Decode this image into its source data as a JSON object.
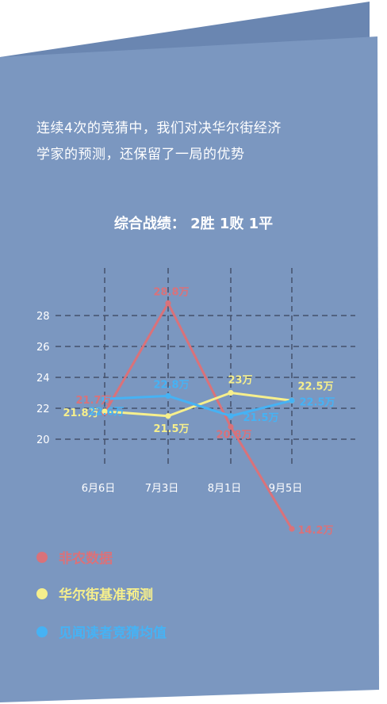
{
  "intro": {
    "line1": "连续4次的竞猜中，我们对决华尔街经济",
    "line2": "学家的预测，还保留了一局的优势"
  },
  "record": "综合战绩： 2胜 1败 1平",
  "colors": {
    "card": "#7b97c0",
    "card_back": "#6a86b1",
    "grid": "#45516a",
    "axis_text": "#ffffff",
    "nonfarm": "#d9727a",
    "wallstreet": "#f6ef8c",
    "readers": "#46b2f4"
  },
  "chart_data": {
    "type": "line",
    "categories": [
      "6月6日",
      "7月3日",
      "8月1日",
      "9月5日"
    ],
    "yticks": [
      20,
      22,
      24,
      26,
      28
    ],
    "ylim": [
      18.5,
      30
    ],
    "grid": true,
    "legend_position": "bottom-left",
    "series": [
      {
        "name": "非农数据",
        "color": "#d9727a",
        "values": [
          21.7,
          28.8,
          20.8,
          14.2
        ],
        "labels": [
          "21.7万",
          "28.8万",
          "20.8万",
          "14.2万"
        ]
      },
      {
        "name": "华尔街基准预测",
        "color": "#f6ef8c",
        "values": [
          21.8,
          21.5,
          23,
          22.5
        ],
        "labels": [
          "21.8万",
          "21.5万",
          "23万",
          "22.5万"
        ]
      },
      {
        "name": "见闻读者竞猜均值",
        "color": "#46b2f4",
        "values": [
          22.6,
          22.8,
          21.5,
          22.5
        ],
        "labels": [
          "22.6万",
          "22.8万",
          "21.5万",
          "22.5万"
        ]
      }
    ]
  }
}
